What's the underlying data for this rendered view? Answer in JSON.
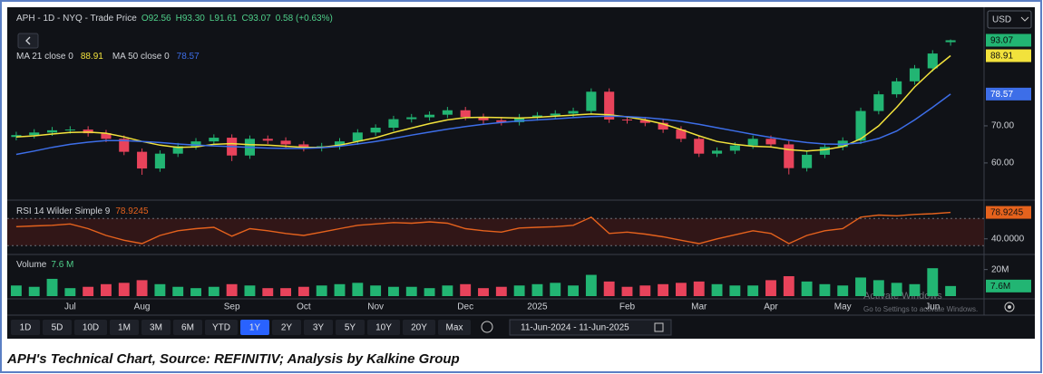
{
  "chart_data": [
    {
      "type": "candlestick",
      "title": "APH - 1D - NYQ - Trade Price",
      "ohlc_text": [
        "O92.56",
        "H93.30",
        "L91.61",
        "C93.07"
      ],
      "change": "0.58 (+0.63%)",
      "currency": "USD",
      "categories": [
        null,
        null,
        null,
        "Jul",
        null,
        null,
        null,
        "Aug",
        null,
        null,
        null,
        null,
        "Sep",
        null,
        null,
        null,
        "Oct",
        null,
        null,
        null,
        "Nov",
        null,
        null,
        null,
        null,
        "Dec",
        null,
        null,
        null,
        "2025",
        null,
        null,
        null,
        null,
        "Feb",
        null,
        null,
        null,
        "Mar",
        null,
        null,
        null,
        "Apr",
        null,
        null,
        null,
        "May",
        null,
        null,
        null,
        null,
        "Jun",
        null
      ],
      "open": [
        67.0,
        67.5,
        68.2,
        68.8,
        69.0,
        68.0,
        66.5,
        63.0,
        58.5,
        62.5,
        64.5,
        65.8,
        66.8,
        62.0,
        66.5,
        66.0,
        65.0,
        64.0,
        64.5,
        65.8,
        68.2,
        69.5,
        71.8,
        72.3,
        73.0,
        74.2,
        72.4,
        71.5,
        71.0,
        72.3,
        72.8,
        73.3,
        74.0,
        79.2,
        71.7,
        71.5,
        70.8,
        69.0,
        66.5,
        62.5,
        63.3,
        64.7,
        66.5,
        65.0,
        58.6,
        62.2,
        64.3,
        66.0,
        74.0,
        78.5,
        82.0,
        85.5,
        92.56
      ],
      "high": [
        68.4,
        69.1,
        69.7,
        69.9,
        69.9,
        68.9,
        67.4,
        63.9,
        63.4,
        65.4,
        66.7,
        67.7,
        67.7,
        67.4,
        67.4,
        66.9,
        65.9,
        65.4,
        66.7,
        69.1,
        70.4,
        72.7,
        73.2,
        73.9,
        75.1,
        75.1,
        73.3,
        72.4,
        73.2,
        73.7,
        74.2,
        74.9,
        80.1,
        80.1,
        72.6,
        72.4,
        71.7,
        69.9,
        67.4,
        64.2,
        65.6,
        67.4,
        67.4,
        65.9,
        63.1,
        65.2,
        66.9,
        74.9,
        79.4,
        82.9,
        86.4,
        90.4,
        93.3
      ],
      "low": [
        66.1,
        66.6,
        67.3,
        67.9,
        67.1,
        65.6,
        62.1,
        56.8,
        57.6,
        61.6,
        63.6,
        64.9,
        60.5,
        61.1,
        65.1,
        64.1,
        63.1,
        63.1,
        63.6,
        64.9,
        67.3,
        68.6,
        70.9,
        71.4,
        72.1,
        71.5,
        70.6,
        70.1,
        70.1,
        71.4,
        71.9,
        72.4,
        73.1,
        70.8,
        70.6,
        69.9,
        68.1,
        65.6,
        61.6,
        61.6,
        62.4,
        63.8,
        64.1,
        56.9,
        57.7,
        61.3,
        63.4,
        65.1,
        73.1,
        77.6,
        81.1,
        84.6,
        91.61
      ],
      "close": [
        67.5,
        68.2,
        68.8,
        69.0,
        68.0,
        66.5,
        63.0,
        58.5,
        62.5,
        64.5,
        65.8,
        66.8,
        62.0,
        66.5,
        66.0,
        65.0,
        64.0,
        64.5,
        65.8,
        68.2,
        69.5,
        71.8,
        72.3,
        73.0,
        74.2,
        72.4,
        71.5,
        71.0,
        72.3,
        72.8,
        73.3,
        74.0,
        79.2,
        71.7,
        71.5,
        70.8,
        69.0,
        66.5,
        62.5,
        63.3,
        64.7,
        66.5,
        65.0,
        58.6,
        62.2,
        64.3,
        66.0,
        74.0,
        78.5,
        82.0,
        85.5,
        89.5,
        93.07
      ],
      "up_color": "#22b573",
      "down_color": "#e8435b",
      "series": [
        {
          "name": "MA 21 close 0",
          "color": "#f2e23c",
          "values": [
            67.0,
            67.3,
            67.8,
            68.2,
            68.3,
            68.0,
            67.0,
            65.8,
            64.8,
            64.2,
            64.3,
            65.0,
            65.2,
            64.9,
            64.8,
            64.5,
            64.2,
            64.2,
            64.8,
            65.8,
            66.8,
            68.2,
            69.4,
            70.6,
            71.6,
            72.2,
            72.3,
            72.2,
            72.1,
            72.3,
            72.6,
            72.9,
            73.2,
            73.0,
            72.4,
            71.6,
            70.5,
            69.0,
            67.3,
            65.8,
            65.0,
            64.5,
            64.3,
            63.6,
            63.2,
            63.6,
            64.4,
            66.5,
            70.0,
            75.0,
            80.5,
            85.0,
            88.91
          ]
        },
        {
          "name": "MA 50 close 0",
          "color": "#3d6ee8",
          "values": [
            62.3,
            63.2,
            64.2,
            65.0,
            65.6,
            66.0,
            66.0,
            65.8,
            65.5,
            65.1,
            64.8,
            64.6,
            64.4,
            64.2,
            64.0,
            63.9,
            63.9,
            64.1,
            64.5,
            65.1,
            65.8,
            66.6,
            67.5,
            68.3,
            69.1,
            69.8,
            70.4,
            70.9,
            71.3,
            71.6,
            71.9,
            72.2,
            72.5,
            72.6,
            72.5,
            72.2,
            71.8,
            71.2,
            70.4,
            69.5,
            68.6,
            67.7,
            66.9,
            66.1,
            65.5,
            65.1,
            65.0,
            65.4,
            66.6,
            68.6,
            71.6,
            75.0,
            78.57
          ]
        }
      ],
      "ylim": [
        50.7,
        101
      ],
      "yticks": [
        {
          "value": 60,
          "label": "60.00"
        },
        {
          "value": 70,
          "label": "70.00"
        }
      ]
    },
    {
      "type": "line",
      "title": "RSI 14 Wilder Simple 9",
      "color": "#e5621d",
      "values": [
        58,
        59,
        60,
        62,
        55,
        45,
        38,
        33,
        45,
        52,
        55,
        57,
        44,
        55,
        52,
        48,
        45,
        50,
        55,
        60,
        62,
        64,
        63,
        65,
        63,
        55,
        52,
        50,
        56,
        57,
        58,
        60,
        72,
        48,
        50,
        47,
        43,
        38,
        33,
        40,
        46,
        52,
        48,
        33,
        45,
        52,
        55,
        72,
        75,
        74,
        76,
        77,
        78.9245
      ],
      "band": [
        30,
        70
      ],
      "ylim": [
        21,
        93
      ],
      "yticks": [
        {
          "value": 40,
          "label": "40.0000"
        }
      ]
    },
    {
      "type": "bar",
      "title": "Volume",
      "legend_value_label": "7.6 M",
      "last_value_label": "7.6M",
      "values": [
        8,
        7,
        13,
        6,
        7,
        9,
        10,
        12,
        9,
        7,
        6,
        7,
        9,
        8,
        6,
        6,
        7,
        8,
        9,
        10,
        8,
        7,
        7,
        6,
        8,
        9,
        6,
        7,
        8,
        9,
        10,
        8,
        16,
        11,
        7,
        8,
        9,
        10,
        11,
        9,
        8,
        8,
        12,
        15,
        11,
        9,
        8,
        14,
        12,
        10,
        9,
        21,
        7.6
      ],
      "ylim": [
        0,
        29.3
      ],
      "yticks": [
        {
          "value": 20,
          "label": "20M"
        }
      ]
    }
  ],
  "toolbar": {
    "ranges": [
      "1D",
      "5D",
      "10D",
      "1M",
      "3M",
      "6M",
      "YTD",
      "1Y",
      "2Y",
      "3Y",
      "5Y",
      "10Y",
      "20Y",
      "Max"
    ],
    "active": "1Y",
    "date_range": "11-Jun-2024 - 11-Jun-2025"
  },
  "watermark": {
    "title": "Activate Windows",
    "subtitle": "Go to Settings to activate Windows."
  },
  "caption": "APH's Technical Chart, Source: REFINITIV; Analysis by Kalkine Group"
}
